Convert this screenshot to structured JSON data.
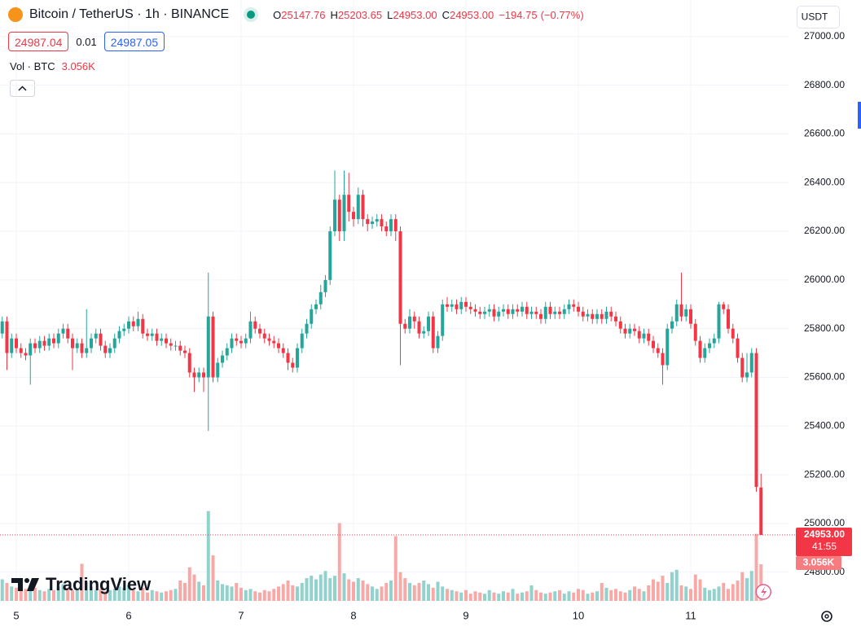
{
  "chart_data": {
    "type": "candlestick",
    "title": "Bitcoin / TetherUS · 1h · BINANCE",
    "legend": [
      {
        "key": "O",
        "value": 25147.76
      },
      {
        "key": "H",
        "value": 25203.65
      },
      {
        "key": "L",
        "value": 24953,
        "label": "24953.00"
      },
      {
        "key": "C",
        "value": 24953,
        "label": "24953.00"
      }
    ],
    "change": {
      "value": -194.75,
      "label": "−194.75"
    },
    "change_pct": {
      "value": -0.77,
      "label": "(−0.77%)"
    },
    "bid": 24987.04,
    "spread": 0.01,
    "ask": 24987.05,
    "currency": "USDT",
    "countdown": "41:55",
    "brand": "TradingView",
    "up_color": "#26a69a",
    "down_color": "#f23645",
    "grid": true,
    "ylim": [
      24682,
      27150
    ],
    "yticks": [
      {
        "value": 24800,
        "label": "24800.00"
      },
      {
        "value": 25000,
        "label": "25000.00"
      },
      {
        "value": 25200,
        "label": "25200.00"
      },
      {
        "value": 25400,
        "label": "25400.00"
      },
      {
        "value": 25600,
        "label": "25600.00"
      },
      {
        "value": 25800,
        "label": "25800.00"
      },
      {
        "value": 26000,
        "label": "26000.00"
      },
      {
        "value": 26200,
        "label": "26200.00"
      },
      {
        "value": 26400,
        "label": "26400.00"
      },
      {
        "value": 26600,
        "label": "26600.00"
      },
      {
        "value": 26800,
        "label": "26800.00"
      },
      {
        "value": 27000,
        "label": "27000.00"
      }
    ],
    "categories": [
      null,
      null,
      null,
      "5",
      null,
      null,
      null,
      null,
      null,
      null,
      null,
      null,
      null,
      null,
      null,
      null,
      null,
      null,
      null,
      null,
      null,
      null,
      null,
      null,
      null,
      null,
      null,
      "6",
      null,
      null,
      null,
      null,
      null,
      null,
      null,
      null,
      null,
      null,
      null,
      null,
      null,
      null,
      null,
      null,
      null,
      null,
      null,
      null,
      null,
      null,
      null,
      "7",
      null,
      null,
      null,
      null,
      null,
      null,
      null,
      null,
      null,
      null,
      null,
      null,
      null,
      null,
      null,
      null,
      null,
      null,
      null,
      null,
      null,
      null,
      null,
      "8",
      null,
      null,
      null,
      null,
      null,
      null,
      null,
      null,
      null,
      null,
      null,
      null,
      null,
      null,
      null,
      null,
      null,
      null,
      null,
      null,
      null,
      null,
      null,
      "9",
      null,
      null,
      null,
      null,
      null,
      null,
      null,
      null,
      null,
      null,
      null,
      null,
      null,
      null,
      null,
      null,
      null,
      null,
      null,
      null,
      null,
      null,
      null,
      "10",
      null,
      null,
      null,
      null,
      null,
      null,
      null,
      null,
      null,
      null,
      null,
      null,
      null,
      null,
      null,
      null,
      null,
      null,
      null,
      null,
      null,
      null,
      null,
      "11",
      null,
      null,
      null,
      null,
      null,
      null,
      null,
      null,
      null,
      null,
      null,
      null,
      null,
      null,
      null
    ],
    "open": [
      25780,
      25830,
      25700,
      25760,
      25720,
      25700,
      25690,
      25740,
      25720,
      25750,
      25730,
      25760,
      25740,
      25780,
      25800,
      25760,
      25720,
      25740,
      25700,
      25720,
      25760,
      25780,
      25730,
      25700,
      25720,
      25760,
      25790,
      25800,
      25830,
      25810,
      25840,
      25780,
      25770,
      25780,
      25750,
      25760,
      25740,
      25730,
      25730,
      25710,
      25700,
      25620,
      25600,
      25620,
      25600,
      25850,
      25600,
      25660,
      25690,
      25720,
      25760,
      25750,
      25740,
      25760,
      25830,
      25800,
      25780,
      25760,
      25750,
      25740,
      25720,
      25700,
      25660,
      25640,
      25720,
      25780,
      25820,
      25880,
      25900,
      25950,
      26000,
      26200,
      26330,
      26200,
      26350,
      26280,
      26250,
      26350,
      26250,
      26230,
      26240,
      26250,
      26220,
      26200,
      26250,
      26200,
      25820,
      25800,
      25850,
      25830,
      25780,
      25790,
      25850,
      25720,
      25770,
      25900,
      25890,
      25900,
      25880,
      25910,
      25890,
      25880,
      25870,
      25860,
      25870,
      25880,
      25850,
      25870,
      25880,
      25860,
      25880,
      25870,
      25890,
      25860,
      25870,
      25860,
      25840,
      25890,
      25860,
      25870,
      25860,
      25880,
      25900,
      25890,
      25870,
      25850,
      25860,
      25840,
      25860,
      25840,
      25870,
      25850,
      25830,
      25800,
      25780,
      25800,
      25790,
      25760,
      25780,
      25750,
      25720,
      25700,
      25650,
      25800,
      25830,
      25900,
      25850,
      25880,
      25820,
      25750,
      25680,
      25720,
      25740,
      25760,
      25900,
      25880,
      25800,
      25760,
      25680,
      25600,
      25620,
      25700,
      25147.76
    ],
    "high": [
      25850,
      25850,
      25780,
      25780,
      25740,
      25720,
      25760,
      25760,
      25770,
      25770,
      25780,
      25780,
      25800,
      25820,
      25820,
      25780,
      25760,
      25760,
      25880,
      25780,
      25800,
      25800,
      25750,
      25740,
      25780,
      25810,
      25820,
      25850,
      25850,
      25870,
      25860,
      25800,
      25800,
      25800,
      25780,
      25780,
      25760,
      25750,
      25750,
      25730,
      25720,
      25640,
      25640,
      25640,
      26030,
      25870,
      25680,
      25710,
      25740,
      25780,
      25780,
      25770,
      25780,
      25870,
      25850,
      25820,
      25800,
      25780,
      25770,
      25760,
      25740,
      25720,
      25680,
      25740,
      25800,
      25840,
      25900,
      25920,
      25980,
      26020,
      26220,
      26450,
      26350,
      26450,
      26440,
      26300,
      26380,
      26370,
      26270,
      26260,
      26270,
      26270,
      26240,
      26270,
      26270,
      26220,
      25840,
      25880,
      25870,
      25850,
      25810,
      25870,
      25870,
      25790,
      25920,
      25930,
      25920,
      25920,
      25930,
      25930,
      25910,
      25900,
      25890,
      25890,
      25900,
      25900,
      25890,
      25900,
      25900,
      25900,
      25900,
      25910,
      25910,
      25890,
      25890,
      25880,
      25910,
      25910,
      25890,
      25890,
      25900,
      25920,
      25920,
      25910,
      25890,
      25880,
      25880,
      25880,
      25880,
      25890,
      25890,
      25870,
      25850,
      25820,
      25820,
      25820,
      25810,
      25800,
      25800,
      25770,
      25740,
      25720,
      25820,
      25850,
      25920,
      26030,
      25900,
      25900,
      25840,
      25770,
      25740,
      25760,
      25780,
      25910,
      25910,
      25900,
      25820,
      25780,
      25700,
      25700,
      25720,
      25720,
      25203.65
    ],
    "low": [
      25760,
      25630,
      25680,
      25700,
      25680,
      25670,
      25570,
      25700,
      25700,
      25710,
      25710,
      25720,
      25720,
      25760,
      25740,
      25630,
      25700,
      25680,
      25680,
      25700,
      25740,
      25710,
      25680,
      25680,
      25700,
      25740,
      25770,
      25780,
      25790,
      25790,
      25760,
      25750,
      25750,
      25730,
      25730,
      25720,
      25710,
      25710,
      25690,
      25680,
      25600,
      25540,
      25580,
      25540,
      25380,
      25580,
      25580,
      25640,
      25670,
      25700,
      25730,
      25720,
      25720,
      25740,
      25780,
      25760,
      25740,
      25730,
      25720,
      25700,
      25680,
      25630,
      25620,
      25620,
      25700,
      25760,
      25800,
      25860,
      25880,
      25930,
      25980,
      26180,
      26160,
      26160,
      26240,
      26220,
      26230,
      26220,
      26200,
      26210,
      26220,
      26200,
      26180,
      26180,
      26160,
      25650,
      25780,
      25780,
      25800,
      25760,
      25760,
      25770,
      25700,
      25700,
      25750,
      25870,
      25870,
      25860,
      25860,
      25870,
      25860,
      25850,
      25840,
      25840,
      25850,
      25830,
      25830,
      25850,
      25840,
      25840,
      25850,
      25850,
      25840,
      25840,
      25840,
      25820,
      25820,
      25840,
      25840,
      25840,
      25840,
      25860,
      25870,
      25850,
      25830,
      25830,
      25820,
      25820,
      25820,
      25820,
      25830,
      25810,
      25780,
      25760,
      25760,
      25770,
      25740,
      25740,
      25730,
      25700,
      25680,
      25570,
      25630,
      25780,
      25810,
      25830,
      25830,
      25800,
      25730,
      25660,
      25660,
      25700,
      25720,
      25740,
      25860,
      25780,
      25740,
      25660,
      25580,
      25580,
      25600,
      25130,
      24953
    ],
    "close": [
      25830,
      25700,
      25760,
      25720,
      25700,
      25690,
      25740,
      25720,
      25750,
      25730,
      25760,
      25740,
      25780,
      25800,
      25760,
      25720,
      25740,
      25700,
      25720,
      25760,
      25780,
      25730,
      25700,
      25720,
      25760,
      25790,
      25800,
      25830,
      25810,
      25840,
      25780,
      25770,
      25780,
      25750,
      25760,
      25740,
      25730,
      25730,
      25710,
      25700,
      25620,
      25600,
      25620,
      25600,
      25850,
      25600,
      25660,
      25690,
      25720,
      25760,
      25750,
      25740,
      25760,
      25830,
      25800,
      25780,
      25760,
      25750,
      25740,
      25720,
      25700,
      25660,
      25640,
      25720,
      25780,
      25820,
      25880,
      25900,
      25950,
      26000,
      26200,
      26330,
      26200,
      26350,
      26280,
      26250,
      26350,
      26250,
      26230,
      26240,
      26250,
      26220,
      26200,
      26250,
      26200,
      25820,
      25800,
      25850,
      25830,
      25780,
      25790,
      25850,
      25720,
      25770,
      25900,
      25890,
      25900,
      25880,
      25910,
      25890,
      25880,
      25870,
      25860,
      25870,
      25880,
      25850,
      25870,
      25880,
      25860,
      25880,
      25870,
      25890,
      25860,
      25870,
      25860,
      25840,
      25890,
      25860,
      25870,
      25860,
      25880,
      25900,
      25890,
      25870,
      25850,
      25860,
      25840,
      25860,
      25840,
      25870,
      25850,
      25830,
      25800,
      25780,
      25800,
      25790,
      25760,
      25780,
      25750,
      25720,
      25700,
      25650,
      25800,
      25830,
      25900,
      25850,
      25880,
      25820,
      25750,
      25680,
      25720,
      25740,
      25760,
      25900,
      25880,
      25800,
      25760,
      25680,
      25600,
      25620,
      25700,
      25150,
      24953
    ],
    "volume": {
      "title": "Vol · BTC",
      "last_label": "3.056K",
      "up_color": "#92d2cc",
      "down_color": "#f7a9a7",
      "ylim": [
        0,
        10200
      ],
      "values": [
        1800,
        1500,
        1200,
        1100,
        900,
        1000,
        1300,
        1100,
        900,
        800,
        1000,
        900,
        1200,
        1400,
        1100,
        900,
        1000,
        3100,
        1600,
        1200,
        900,
        1000,
        800,
        900,
        1000,
        1200,
        1100,
        1300,
        900,
        800,
        1100,
        700,
        900,
        800,
        700,
        800,
        900,
        1000,
        1700,
        1500,
        2800,
        2200,
        1600,
        1300,
        7500,
        3800,
        1700,
        1400,
        1300,
        1200,
        1500,
        1100,
        900,
        1000,
        800,
        700,
        900,
        800,
        1000,
        1200,
        1400,
        1700,
        1300,
        1200,
        1500,
        1900,
        2100,
        1800,
        2200,
        2500,
        1900,
        2100,
        6500,
        2300,
        1800,
        1600,
        1900,
        1700,
        1400,
        1200,
        1000,
        1200,
        1500,
        1700,
        5400,
        2400,
        1900,
        1500,
        1300,
        1500,
        1700,
        1400,
        1100,
        1600,
        1200,
        1000,
        900,
        800,
        700,
        900,
        600,
        800,
        700,
        600,
        900,
        700,
        600,
        800,
        700,
        1000,
        600,
        700,
        800,
        1300,
        900,
        700,
        600,
        700,
        800,
        900,
        600,
        800,
        700,
        1000,
        900,
        600,
        700,
        800,
        1500,
        1100,
        900,
        1000,
        800,
        700,
        900,
        1200,
        1000,
        800,
        1300,
        1800,
        1600,
        2100,
        1500,
        2400,
        2600,
        1300,
        1200,
        1000,
        2200,
        1800,
        1100,
        900,
        1000,
        1200,
        1500,
        1000,
        1400,
        1700,
        2400,
        1900,
        2500,
        5600,
        3056
      ]
    }
  }
}
